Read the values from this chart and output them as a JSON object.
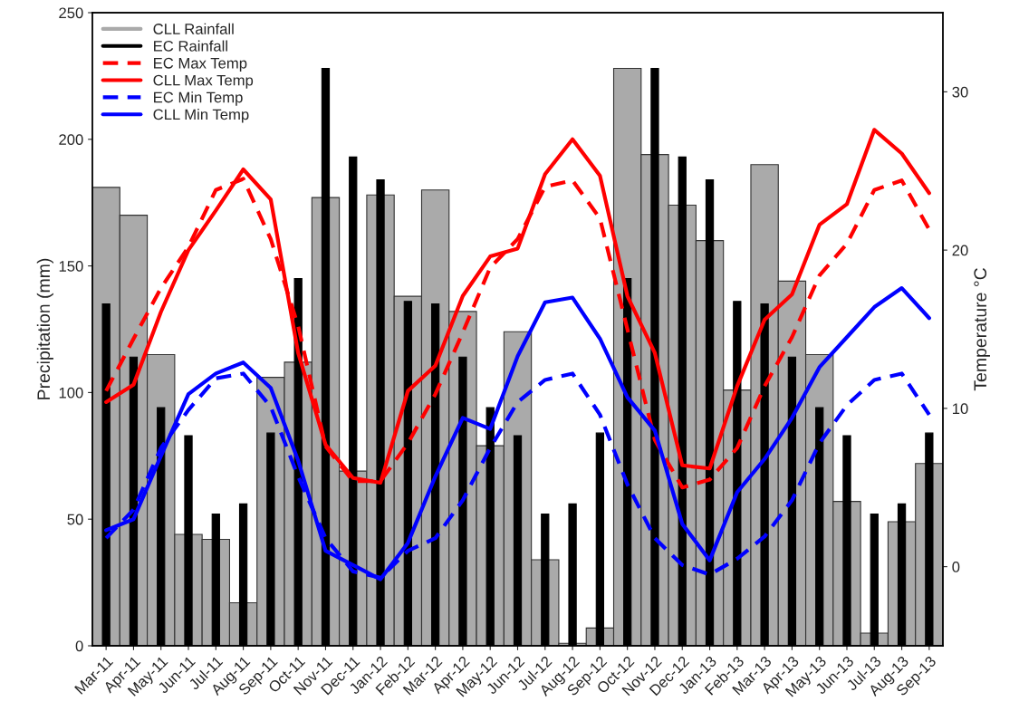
{
  "chart_data": {
    "type": "bar",
    "ylabel": "Precipitation (mm)",
    "y2label": "Temperature °C",
    "categories": [
      "Mar-11",
      "Apr-11",
      "May-11",
      "Jun-11",
      "Jul-11",
      "Aug-11",
      "Sep-11",
      "Oct-11",
      "Nov-11",
      "Dec-11",
      "Jan-12",
      "Feb-12",
      "Mar-12",
      "Apr-12",
      "May-12",
      "Jun-12",
      "Jul-12",
      "Aug-12",
      "Sep-12",
      "Oct-12",
      "Nov-12",
      "Dec-12",
      "Jan-13",
      "Feb-13",
      "Mar-13",
      "Apr-13",
      "May-13",
      "Jun-13",
      "Jul-13",
      "Aug-13",
      "Sep-13"
    ],
    "series": [
      {
        "name": "CLL Rainfall",
        "color": "#aaaaaa",
        "values": [
          181,
          170,
          115,
          44,
          42,
          17,
          106,
          112,
          177,
          69,
          178,
          138,
          180,
          132,
          79,
          124,
          34,
          1,
          7,
          228,
          194,
          174,
          160,
          101,
          190,
          144,
          115,
          57,
          5,
          49,
          72
        ]
      },
      {
        "name": "EC Rainfall",
        "color": "#000000",
        "values": [
          135,
          114,
          94,
          83,
          52,
          56,
          84,
          145,
          228,
          193,
          184,
          136,
          135,
          114,
          94,
          83,
          52,
          56,
          84,
          145,
          228,
          193,
          184,
          136,
          135,
          114,
          94,
          83,
          52,
          56,
          84
        ]
      },
      {
        "name": "EC Max Temp",
        "type": "line",
        "axis": "y2",
        "line_style": "dashed",
        "color": "#ff0000",
        "values": [
          11.1,
          14.4,
          17.6,
          20.2,
          23.8,
          24.5,
          20.7,
          15.2,
          7.6,
          5.4,
          5.4,
          7.8,
          10.9,
          14.8,
          18.9,
          20.7,
          24.0,
          24.4,
          22.0,
          15.0,
          8.0,
          5.0,
          5.5,
          7.5,
          11.4,
          14.5,
          18.4,
          20.4,
          23.8,
          24.4,
          21.3
        ]
      },
      {
        "name": "CLL Max Temp",
        "type": "line",
        "axis": "y2",
        "line_style": "solid",
        "color": "#ff0000",
        "values": [
          10.4,
          11.5,
          16.1,
          20.0,
          22.5,
          25.1,
          23.2,
          13.5,
          7.7,
          5.6,
          5.3,
          11.1,
          12.7,
          17.1,
          19.6,
          20.1,
          24.8,
          27.0,
          24.7,
          17.1,
          13.5,
          6.4,
          6.2,
          11.4,
          15.6,
          17.2,
          21.6,
          22.9,
          27.6,
          26.1,
          23.6
        ]
      },
      {
        "name": "EC Min Temp",
        "type": "line",
        "axis": "y2",
        "line_style": "dashed",
        "color": "#0000ff",
        "values": [
          1.8,
          3.6,
          7.5,
          9.9,
          11.9,
          12.2,
          10.1,
          5.7,
          1.8,
          -0.3,
          -0.7,
          1.0,
          1.8,
          4.2,
          7.5,
          10.4,
          11.8,
          12.2,
          9.6,
          5.2,
          1.8,
          0.1,
          -0.5,
          0.5,
          1.9,
          4.2,
          7.8,
          10.2,
          11.8,
          12.2,
          9.6
        ]
      },
      {
        "name": "CLL Min Temp",
        "type": "line",
        "axis": "y2",
        "line_style": "solid",
        "color": "#0000ff",
        "values": [
          2.3,
          3.0,
          7.0,
          10.9,
          12.2,
          12.9,
          11.3,
          6.7,
          1.0,
          0.1,
          -0.8,
          1.5,
          5.7,
          9.4,
          8.7,
          13.3,
          16.7,
          17.0,
          14.4,
          10.7,
          8.6,
          2.7,
          0.4,
          4.7,
          6.8,
          9.4,
          12.6,
          14.5,
          16.4,
          17.6,
          15.7
        ]
      }
    ],
    "ylim": [
      0,
      250
    ],
    "yticks": [
      0,
      50,
      100,
      150,
      200,
      250
    ],
    "y2lim": [
      -5,
      35
    ],
    "y2ticks": [
      0,
      10,
      20,
      30
    ],
    "grid": false,
    "legend": "top left"
  }
}
